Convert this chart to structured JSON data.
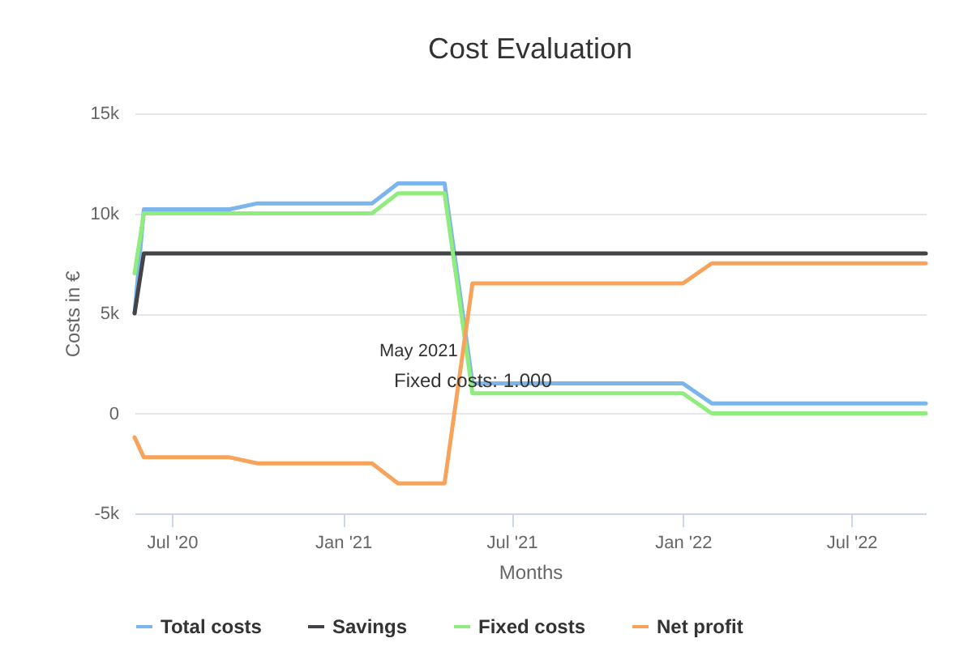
{
  "chart_data": {
    "type": "line",
    "title": "Cost Evaluation",
    "xlabel": "Months",
    "ylabel": "Costs in €",
    "ylim": [
      -5000,
      15000
    ],
    "yticks": [
      {
        "value": -5000,
        "label": "-5k"
      },
      {
        "value": 0,
        "label": "0"
      },
      {
        "value": 5000,
        "label": "5k"
      },
      {
        "value": 10000,
        "label": "10k"
      },
      {
        "value": 15000,
        "label": "15k"
      }
    ],
    "xlim": [
      "2020-05-22",
      "2022-09-19"
    ],
    "xticks": [
      {
        "value": "2020-07",
        "label": "Jul '20"
      },
      {
        "value": "2021-01",
        "label": "Jan '21"
      },
      {
        "value": "2021-07",
        "label": "Jul '21"
      },
      {
        "value": "2022-01",
        "label": "Jan '22"
      },
      {
        "value": "2022-07",
        "label": "Jul '22"
      }
    ],
    "grid": "y",
    "legend": "bottom",
    "marker": "none",
    "line_style": "solid",
    "series": [
      {
        "name": "Total costs",
        "color": "#7cb5ec",
        "x": [
          "2020-05-22",
          "2020-06",
          "2020-09",
          "2020-10",
          "2021-02",
          "2021-03",
          "2021-04-20",
          "2021-05-20",
          "2022-01",
          "2022-02",
          "2022-09-19"
        ],
        "values": [
          5000,
          10200,
          10200,
          10500,
          10500,
          11500,
          11500,
          1500,
          1500,
          500,
          500
        ]
      },
      {
        "name": "Savings",
        "color": "#434348",
        "x": [
          "2020-05-22",
          "2020-06",
          "2022-09-19"
        ],
        "values": [
          5000,
          8000,
          8000
        ]
      },
      {
        "name": "Fixed costs",
        "color": "#90ed7d",
        "x": [
          "2020-05-22",
          "2020-06",
          "2021-02",
          "2021-03",
          "2021-04-20",
          "2021-05-20",
          "2022-01",
          "2022-02",
          "2022-09-19"
        ],
        "values": [
          7000,
          10000,
          10000,
          11000,
          11000,
          1000,
          1000,
          0,
          0
        ]
      },
      {
        "name": "Net profit",
        "color": "#f7a35c",
        "x": [
          "2020-05-22",
          "2020-06",
          "2020-09",
          "2020-10",
          "2021-02",
          "2021-03",
          "2021-04-20",
          "2021-05-20",
          "2022-01",
          "2022-02",
          "2022-09-19"
        ],
        "values": [
          -1200,
          -2200,
          -2200,
          -2500,
          -2500,
          -3500,
          -3500,
          6500,
          6500,
          7500,
          7500
        ]
      }
    ],
    "annotations": [
      "May 2021",
      "Fixed costs: 1.000"
    ]
  }
}
